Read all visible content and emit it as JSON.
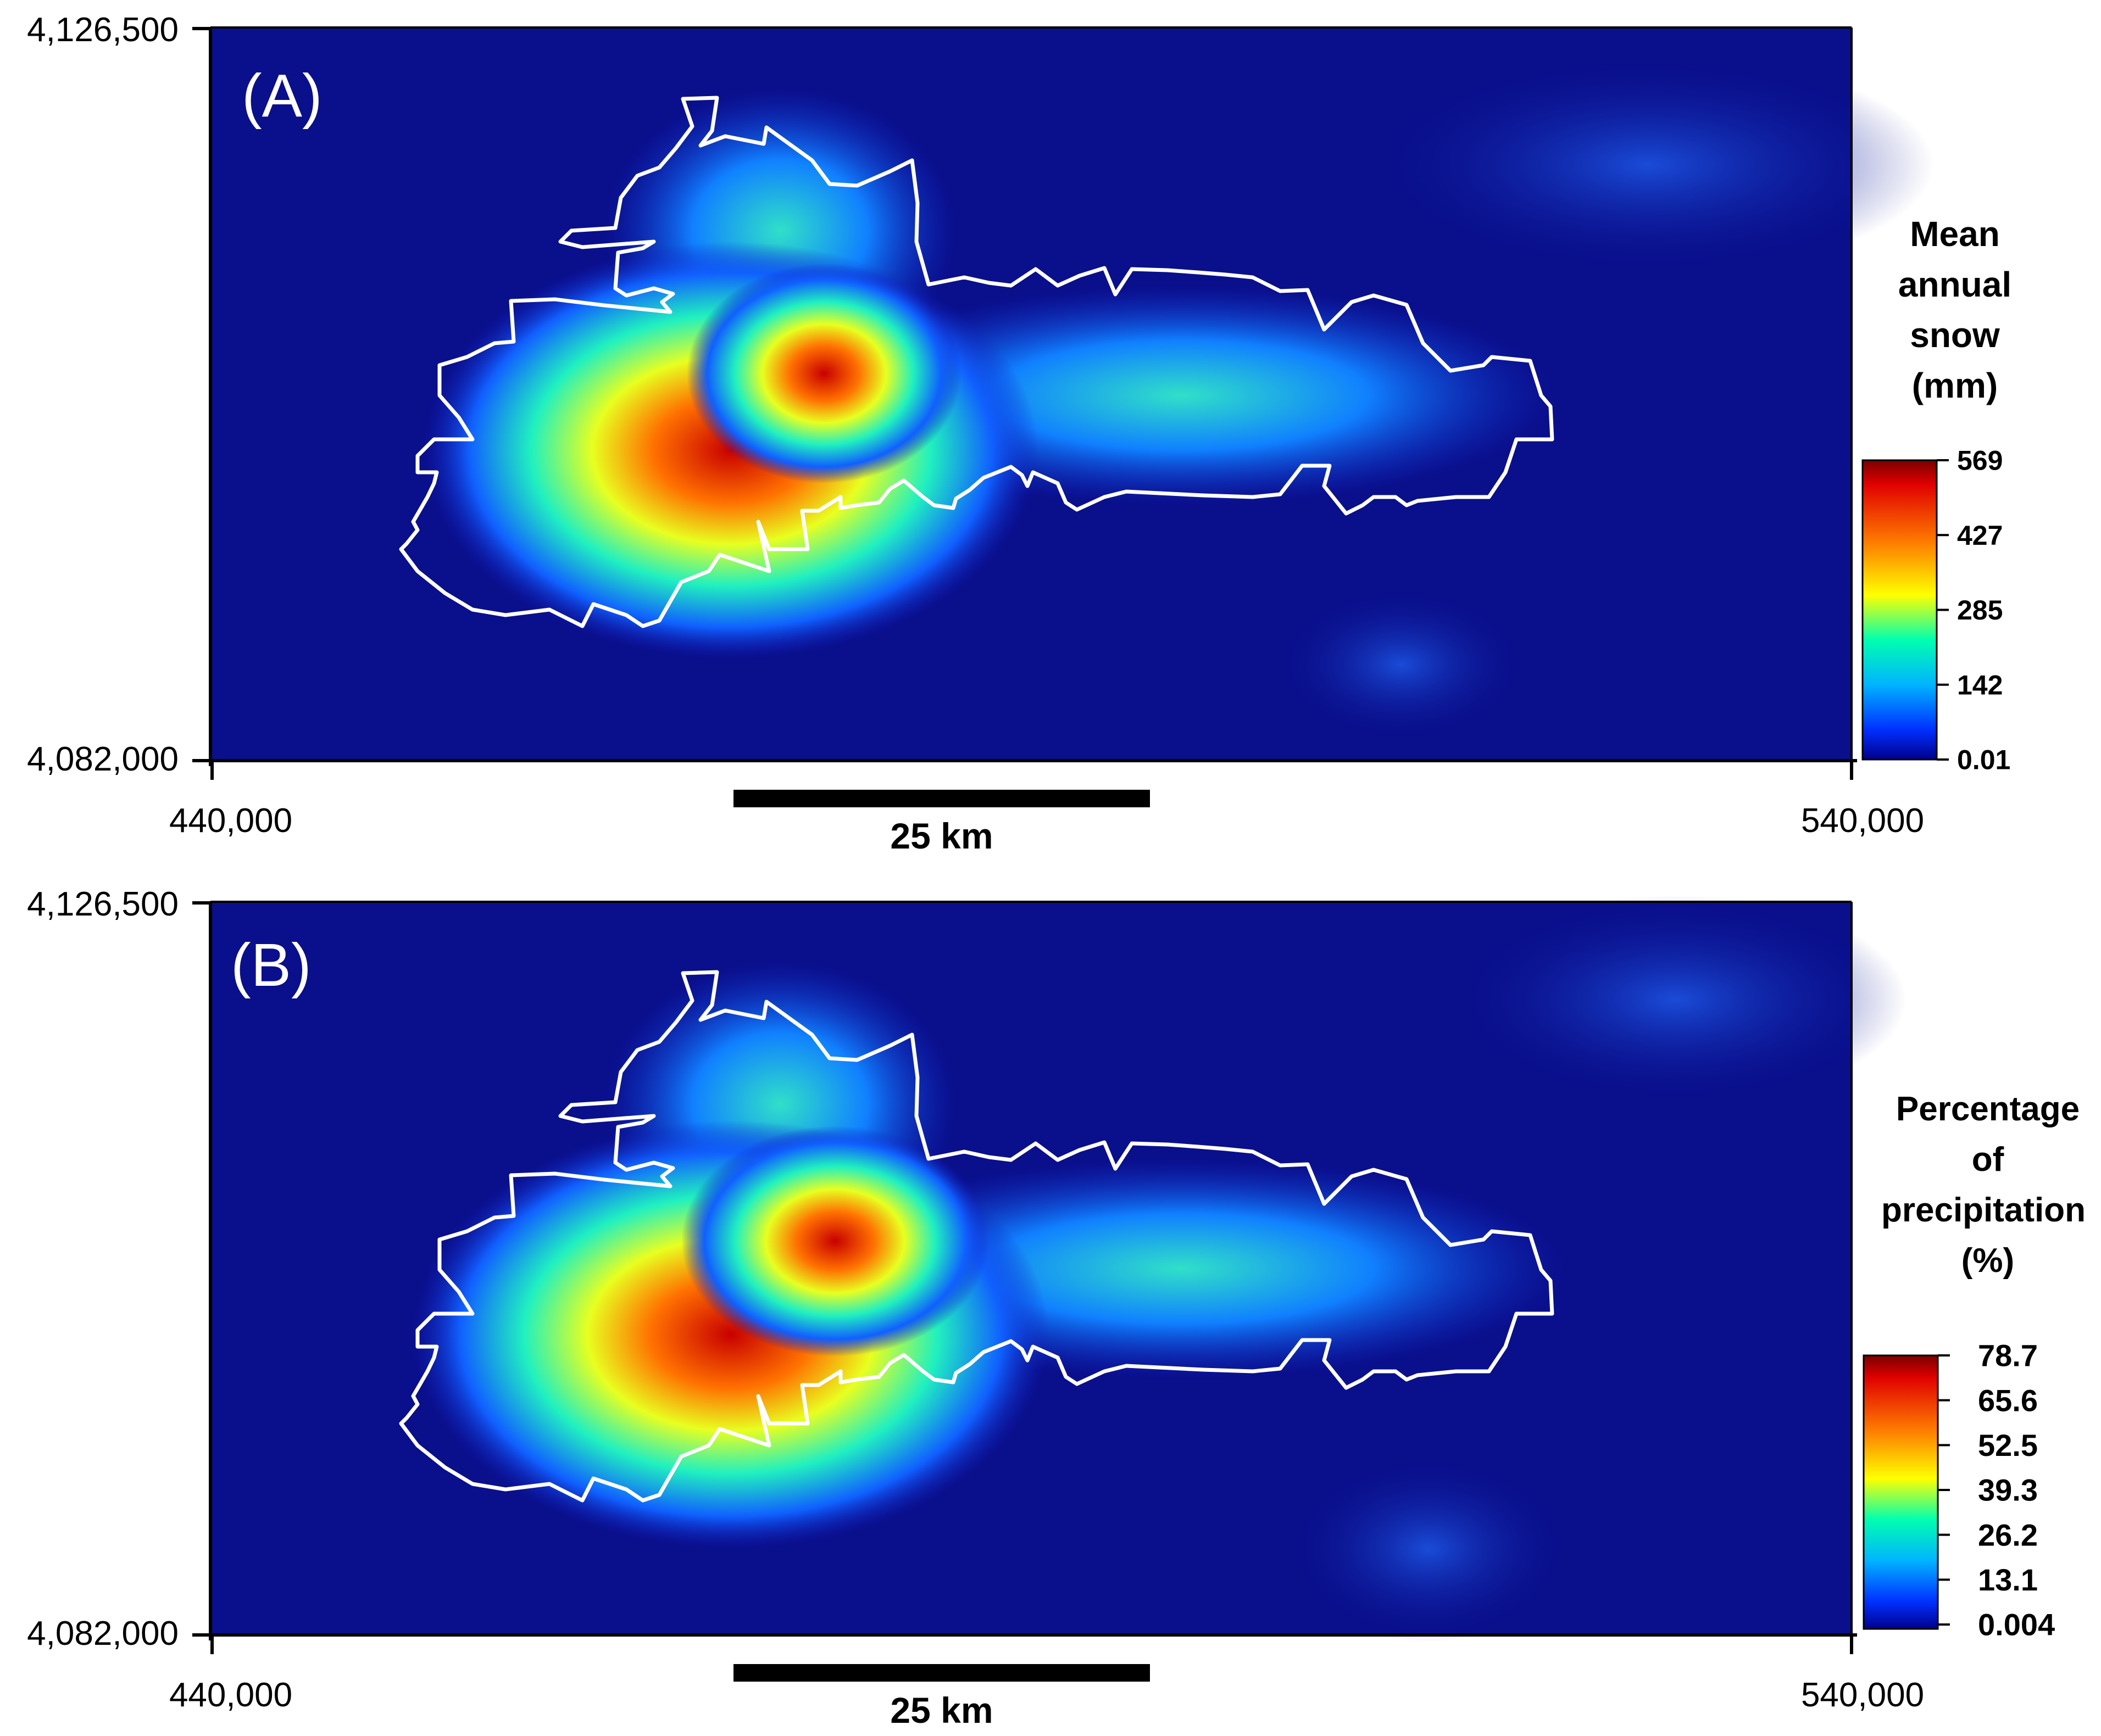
{
  "panels": [
    {
      "label": "(A)",
      "y_top": "4,126,500",
      "y_bottom": "4,082,000",
      "x_left": "440,000",
      "x_right": "540,000",
      "scale_bar": "25 km",
      "legend_title": [
        "Mean",
        "annual",
        "snow",
        "(mm)"
      ],
      "legend_ticks": [
        "569",
        "427",
        "285",
        "142",
        "0.01"
      ]
    },
    {
      "label": "(B)",
      "y_top": "4,126,500",
      "y_bottom": "4,082,000",
      "x_left": "440,000",
      "x_right": "540,000",
      "scale_bar": "25 km",
      "legend_title": [
        "Percentage",
        "of",
        "precipitation",
        "(%)"
      ],
      "legend_ticks": [
        "78.7",
        "65.6",
        "52.5",
        "39.3",
        "26.2",
        "13.1",
        "0.004"
      ]
    }
  ],
  "colors": {
    "background_map": "#0a0f8c",
    "outline": "#ffffff",
    "ramp": [
      "#7a0000",
      "#e00000",
      "#ff8000",
      "#ffff00",
      "#00ffb0",
      "#00b4ff",
      "#0030ff",
      "#00008c"
    ]
  }
}
